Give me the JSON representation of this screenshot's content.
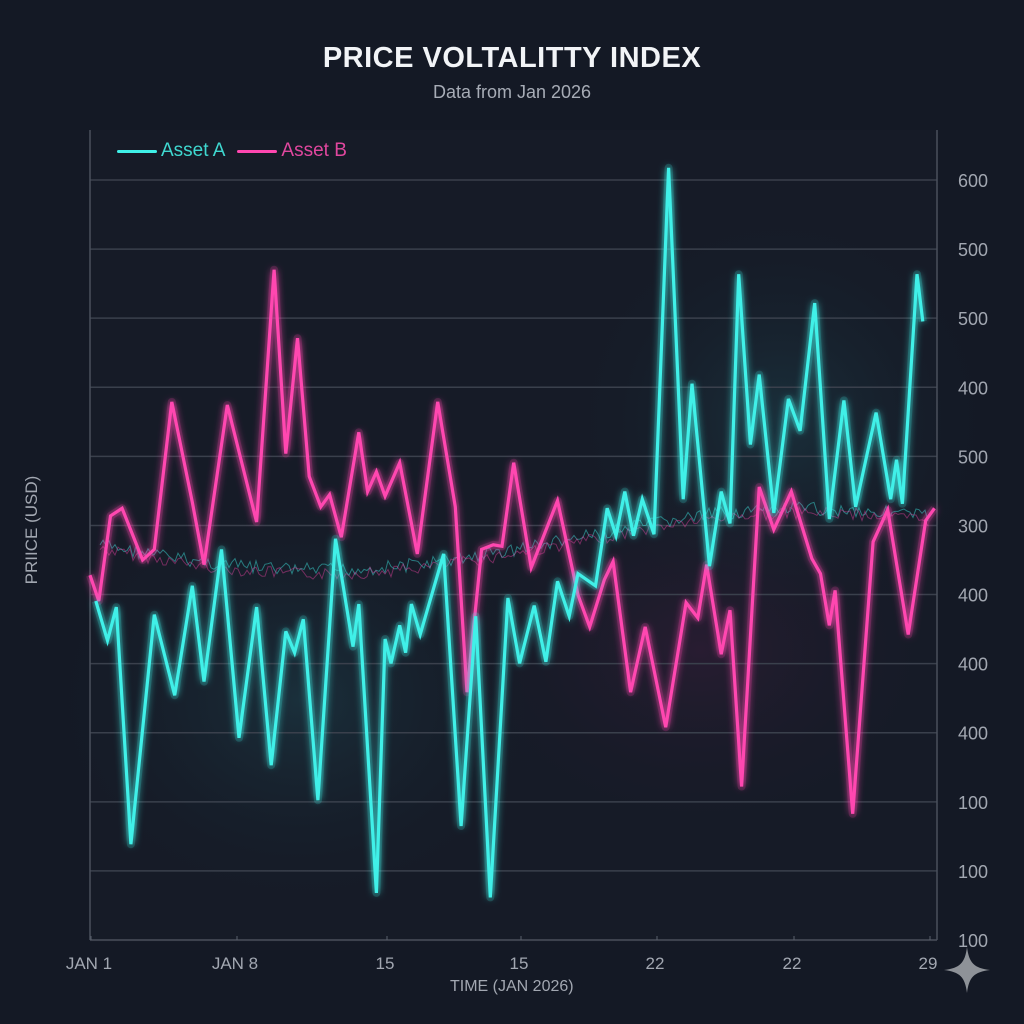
{
  "chart_data": {
    "type": "line",
    "title": "PRICE VOLTALITTY INDEX",
    "subtitle": "Data from Jan 2026",
    "xlabel": "TIME (JAN 2026)",
    "ylabel": "PRIICE (USD)",
    "x_tick_labels": [
      "JAN 1",
      "JAN 8",
      "15",
      "15",
      "22",
      "22",
      "29"
    ],
    "y_tick_labels": [
      "600",
      "500",
      "500",
      "400",
      "500",
      "300",
      "400",
      "400",
      "400",
      "100",
      "100",
      "100"
    ],
    "ylim": [
      100,
      600
    ],
    "xlim": [
      1,
      29
    ],
    "grid": true,
    "legend_position": "top-left",
    "series": [
      {
        "name": "Asset A",
        "color": "#3ff0e8",
        "points": [
          [
            1.2,
            323
          ],
          [
            1.6,
            297
          ],
          [
            1.9,
            319
          ],
          [
            2.4,
            163
          ],
          [
            3.2,
            314
          ],
          [
            3.9,
            261
          ],
          [
            4.5,
            333
          ],
          [
            4.9,
            270
          ],
          [
            5.5,
            357
          ],
          [
            6.1,
            233
          ],
          [
            6.7,
            319
          ],
          [
            7.2,
            215
          ],
          [
            7.7,
            303
          ],
          [
            8.0,
            289
          ],
          [
            8.3,
            311
          ],
          [
            8.8,
            192
          ],
          [
            9.4,
            364
          ],
          [
            10.0,
            293
          ],
          [
            10.2,
            321
          ],
          [
            10.8,
            131
          ],
          [
            11.1,
            298
          ],
          [
            11.3,
            282
          ],
          [
            11.6,
            307
          ],
          [
            11.8,
            289
          ],
          [
            12.0,
            321
          ],
          [
            12.3,
            301
          ],
          [
            13.1,
            354
          ],
          [
            13.7,
            175
          ],
          [
            14.2,
            313
          ],
          [
            14.7,
            128
          ],
          [
            15.3,
            325
          ],
          [
            15.7,
            282
          ],
          [
            16.2,
            320
          ],
          [
            16.6,
            283
          ],
          [
            17.0,
            336
          ],
          [
            17.4,
            313
          ],
          [
            17.7,
            341
          ],
          [
            18.3,
            333
          ],
          [
            18.7,
            384
          ],
          [
            19.0,
            366
          ],
          [
            19.3,
            395
          ],
          [
            19.6,
            366
          ],
          [
            19.9,
            390
          ],
          [
            20.3,
            367
          ],
          [
            20.8,
            608
          ],
          [
            21.3,
            390
          ],
          [
            21.6,
            466
          ],
          [
            22.2,
            346
          ],
          [
            22.6,
            395
          ],
          [
            22.9,
            374
          ],
          [
            23.2,
            538
          ],
          [
            23.6,
            426
          ],
          [
            23.9,
            472
          ],
          [
            24.4,
            381
          ],
          [
            24.9,
            456
          ],
          [
            25.3,
            435
          ],
          [
            25.8,
            519
          ],
          [
            26.3,
            377
          ],
          [
            26.8,
            455
          ],
          [
            27.2,
            385
          ],
          [
            27.9,
            447
          ],
          [
            28.4,
            390
          ],
          [
            28.6,
            416
          ],
          [
            28.8,
            387
          ],
          [
            29.3,
            538
          ],
          [
            29.5,
            507
          ]
        ]
      },
      {
        "name": "Asset B",
        "color": "#ff47b0",
        "points": [
          [
            1.0,
            340
          ],
          [
            1.3,
            323
          ],
          [
            1.7,
            379
          ],
          [
            2.1,
            384
          ],
          [
            2.8,
            350
          ],
          [
            3.2,
            357
          ],
          [
            3.8,
            454
          ],
          [
            4.5,
            388
          ],
          [
            4.9,
            347
          ],
          [
            5.7,
            452
          ],
          [
            6.7,
            375
          ],
          [
            7.3,
            541
          ],
          [
            7.7,
            420
          ],
          [
            8.1,
            496
          ],
          [
            8.5,
            405
          ],
          [
            8.9,
            385
          ],
          [
            9.2,
            393
          ],
          [
            9.6,
            365
          ],
          [
            10.2,
            434
          ],
          [
            10.5,
            395
          ],
          [
            10.8,
            408
          ],
          [
            11.1,
            392
          ],
          [
            11.6,
            414
          ],
          [
            12.2,
            354
          ],
          [
            12.9,
            454
          ],
          [
            13.5,
            385
          ],
          [
            13.9,
            263
          ],
          [
            14.4,
            357
          ],
          [
            14.8,
            360
          ],
          [
            15.1,
            359
          ],
          [
            15.5,
            414
          ],
          [
            16.1,
            345
          ],
          [
            17.0,
            389
          ],
          [
            17.7,
            327
          ],
          [
            18.1,
            306
          ],
          [
            18.6,
            337
          ],
          [
            18.9,
            349
          ],
          [
            19.5,
            263
          ],
          [
            20.0,
            306
          ],
          [
            20.7,
            240
          ],
          [
            21.4,
            322
          ],
          [
            21.8,
            312
          ],
          [
            22.1,
            347
          ],
          [
            22.6,
            288
          ],
          [
            22.9,
            317
          ],
          [
            23.3,
            201
          ],
          [
            23.9,
            398
          ],
          [
            24.4,
            370
          ],
          [
            25.0,
            395
          ],
          [
            25.7,
            351
          ],
          [
            26.0,
            341
          ],
          [
            26.3,
            307
          ],
          [
            26.5,
            330
          ],
          [
            27.1,
            183
          ],
          [
            27.8,
            362
          ],
          [
            28.3,
            383
          ],
          [
            29.0,
            301
          ],
          [
            29.6,
            376
          ],
          [
            29.9,
            384
          ]
        ]
      }
    ]
  },
  "watermark": {
    "icon": "sparkle-icon"
  }
}
